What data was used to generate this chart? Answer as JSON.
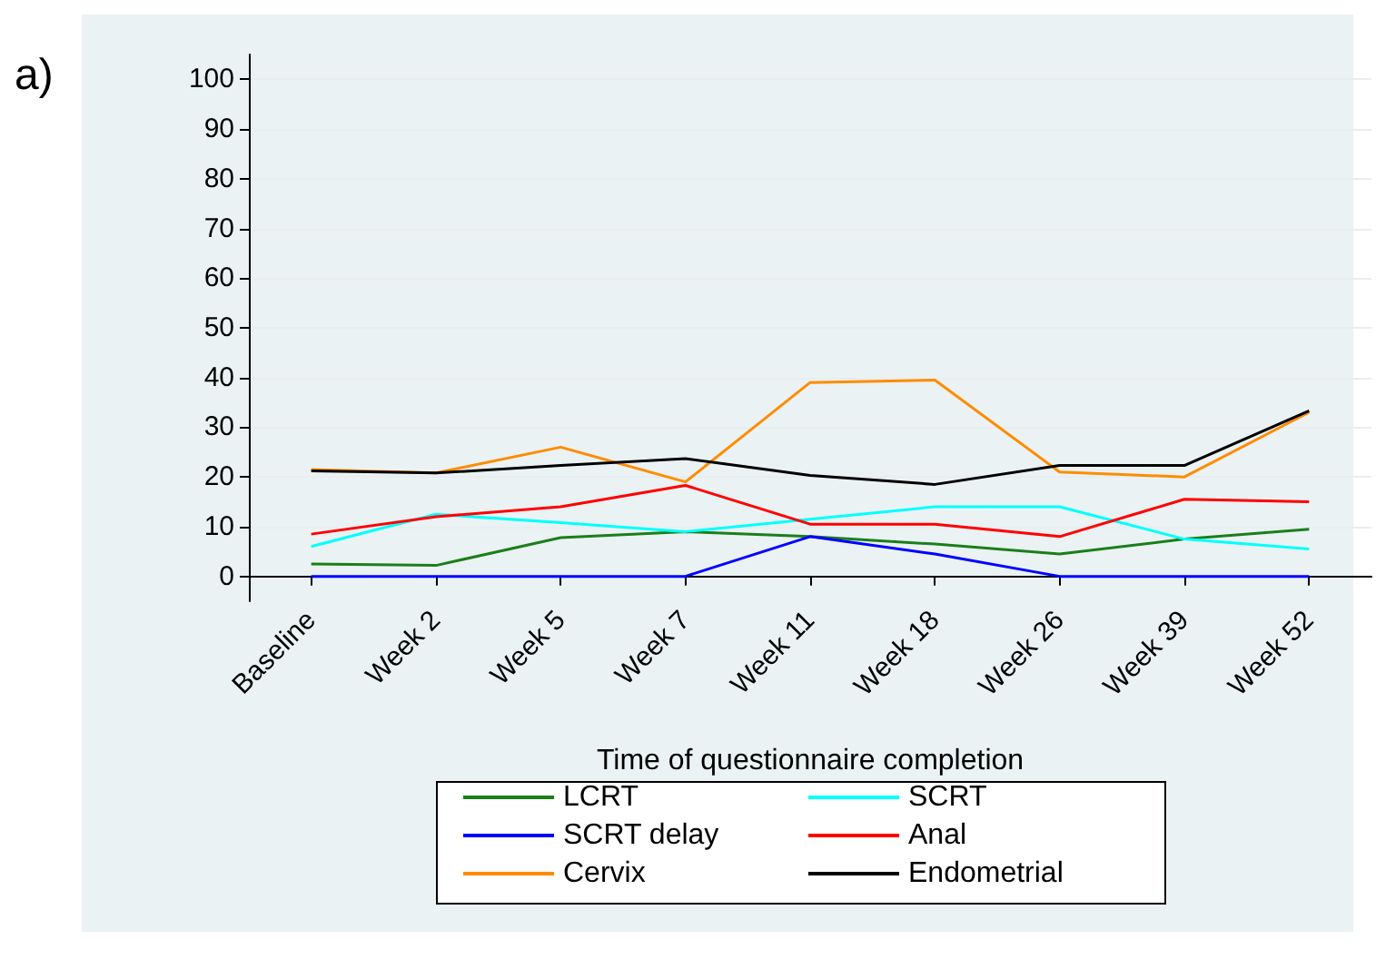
{
  "chart_data": {
    "type": "line",
    "xlabel": "Time of questionnaire completion",
    "annotations": [
      "a)"
    ],
    "categories": [
      "Baseline",
      "Week 2",
      "Week 5",
      "Week 7",
      "Week 11",
      "Week 18",
      "Week 26",
      "Week 39",
      "Week 52"
    ],
    "series": [
      {
        "name": "LCRT",
        "color": "#1a7f1a",
        "values": [
          2.5,
          2.2,
          7.8,
          9,
          8,
          6.5,
          4.5,
          7.5,
          9.5
        ]
      },
      {
        "name": "SCRT",
        "color": "#00ffff",
        "values": [
          6,
          12.5,
          10.8,
          9,
          11.5,
          14,
          14,
          7.5,
          5.5
        ]
      },
      {
        "name": "SCRT delay",
        "color": "#0000ff",
        "values": [
          0,
          0,
          0,
          0,
          8,
          4.5,
          0,
          0,
          0
        ]
      },
      {
        "name": "Anal",
        "color": "#ff0000",
        "values": [
          8.5,
          12,
          14,
          18.3,
          10.5,
          10.5,
          8,
          15.5,
          15
        ]
      },
      {
        "name": "Cervix",
        "color": "#ff8c00",
        "values": [
          21.5,
          20.8,
          26,
          19,
          39,
          39.5,
          21,
          20,
          33
        ]
      },
      {
        "name": "Endometrial",
        "color": "#000000",
        "values": [
          21.2,
          20.8,
          22.3,
          23.7,
          20.3,
          18.5,
          22.3,
          22.3,
          33.3
        ]
      }
    ],
    "ylim": [
      -5,
      105
    ],
    "yticks": [
      0,
      10,
      20,
      30,
      40,
      50,
      60,
      70,
      80,
      90,
      100
    ],
    "grid": "y",
    "legend": "bottom",
    "marker": "none",
    "line_style": "solid"
  }
}
